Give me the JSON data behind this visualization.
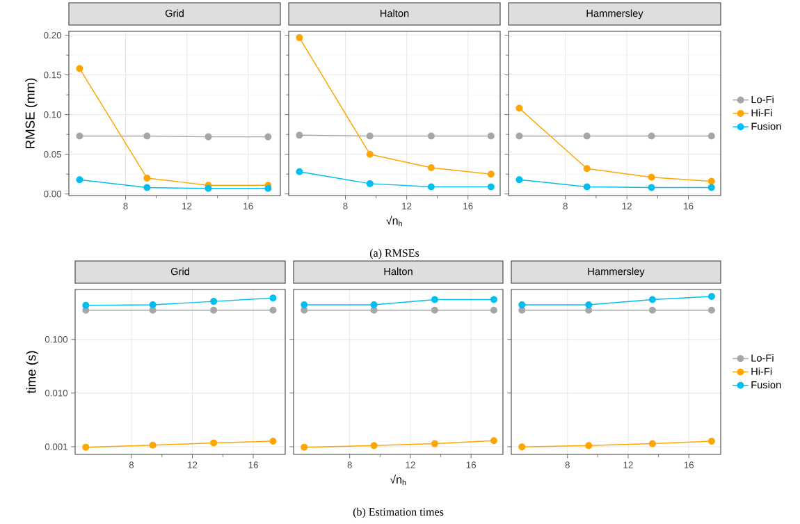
{
  "chart_data": [
    {
      "type": "line",
      "title": "Grid",
      "ylabel": "RMSE (mm)",
      "x": [
        5.0,
        9.4,
        13.4,
        17.3
      ],
      "xlim": [
        4.3,
        18.1
      ],
      "xticks": [
        8,
        12,
        16
      ],
      "ylim": [
        -0.002,
        0.205
      ],
      "yticks": [
        {
          "value": 0,
          "label": "0.00"
        },
        {
          "value": 0.05,
          "label": "0.05"
        },
        {
          "value": 0.1,
          "label": "0.10"
        },
        {
          "value": 0.15,
          "label": "0.15"
        },
        {
          "value": 0.2,
          "label": "0.20"
        }
      ],
      "grid": true,
      "marker": "circle",
      "line_style": "solid",
      "series": [
        {
          "color": "#a6a6a6",
          "values": [
            0.073,
            0.073,
            0.072,
            0.072
          ]
        },
        {
          "color": "#ffa500",
          "values": [
            0.158,
            0.02,
            0.011,
            0.011
          ]
        },
        {
          "color": "#00bfef",
          "values": [
            0.018,
            0.008,
            0.007,
            0.007
          ]
        }
      ]
    },
    {
      "type": "line",
      "title": "Halton",
      "xlabel": "√n$_{h}$",
      "annotations": [
        "(a) RMSEs"
      ],
      "x": [
        5.0,
        9.6,
        13.6,
        17.5
      ],
      "xlim": [
        4.3,
        18.1
      ],
      "xticks": [
        8,
        12,
        16
      ],
      "ylim": [
        -0.002,
        0.205
      ],
      "tick_labels": "x",
      "grid": true,
      "marker": "circle",
      "line_style": "solid",
      "series": [
        {
          "color": "#a6a6a6",
          "values": [
            0.074,
            0.073,
            0.073,
            0.073
          ]
        },
        {
          "color": "#ffa500",
          "values": [
            0.197,
            0.05,
            0.033,
            0.025
          ]
        },
        {
          "color": "#00bfef",
          "values": [
            0.028,
            0.013,
            0.009,
            0.009
          ]
        }
      ]
    },
    {
      "type": "line",
      "title": "Hammersley",
      "x": [
        5.0,
        9.4,
        13.6,
        17.5
      ],
      "xlim": [
        4.3,
        18.1
      ],
      "xticks": [
        8,
        12,
        16
      ],
      "ylim": [
        -0.002,
        0.205
      ],
      "tick_labels": "x",
      "grid": true,
      "legend": "right",
      "marker": "circle",
      "line_style": "solid",
      "series": [
        {
          "name": "Lo-Fi",
          "color": "#a6a6a6",
          "values": [
            0.073,
            0.073,
            0.073,
            0.073
          ]
        },
        {
          "name": "Hi-Fi",
          "color": "#ffa500",
          "values": [
            0.108,
            0.032,
            0.021,
            0.016
          ]
        },
        {
          "name": "Fusion",
          "color": "#00bfef",
          "values": [
            0.018,
            0.009,
            0.008,
            0.008
          ]
        }
      ]
    },
    {
      "type": "line",
      "title": "Grid",
      "ylabel": "time (s)",
      "x": [
        5.0,
        9.4,
        13.4,
        17.3
      ],
      "xlim": [
        4.3,
        18.1
      ],
      "xticks": [
        8,
        12,
        16
      ],
      "log": "y",
      "ylim": [
        0.00072,
        0.85
      ],
      "yticks": [
        {
          "value": 0.001,
          "label": "0.001"
        },
        {
          "value": 0.01,
          "label": "0.010"
        },
        {
          "value": 0.1,
          "label": "0.100"
        }
      ],
      "grid": true,
      "marker": "circle",
      "line_style": "solid",
      "series": [
        {
          "color": "#a6a6a6",
          "values": [
            0.35,
            0.35,
            0.35,
            0.35
          ]
        },
        {
          "color": "#ffa500",
          "values": [
            0.00098,
            0.00107,
            0.00118,
            0.00127
          ]
        },
        {
          "color": "#00bfef",
          "values": [
            0.43,
            0.44,
            0.51,
            0.59
          ]
        }
      ]
    },
    {
      "type": "line",
      "title": "Halton",
      "xlabel": "√n$_{h}$",
      "annotations": [
        "(b) Estimation times"
      ],
      "x": [
        5.0,
        9.6,
        13.6,
        17.5
      ],
      "xlim": [
        4.3,
        18.1
      ],
      "xticks": [
        8,
        12,
        16
      ],
      "log": "y",
      "ylim": [
        0.00072,
        0.85
      ],
      "tick_labels": "x",
      "grid": true,
      "marker": "circle",
      "line_style": "solid",
      "series": [
        {
          "color": "#a6a6a6",
          "values": [
            0.35,
            0.35,
            0.35,
            0.35
          ]
        },
        {
          "color": "#ffa500",
          "values": [
            0.00098,
            0.00105,
            0.00114,
            0.0013
          ]
        },
        {
          "color": "#00bfef",
          "values": [
            0.44,
            0.44,
            0.55,
            0.55
          ]
        }
      ]
    },
    {
      "type": "line",
      "title": "Hammersley",
      "x": [
        5.0,
        9.4,
        13.6,
        17.5
      ],
      "xlim": [
        4.3,
        18.1
      ],
      "xticks": [
        8,
        12,
        16
      ],
      "log": "y",
      "ylim": [
        0.00072,
        0.85
      ],
      "tick_labels": "x",
      "grid": true,
      "legend": "right",
      "marker": "circle",
      "line_style": "solid",
      "series": [
        {
          "name": "Lo-Fi",
          "color": "#a6a6a6",
          "values": [
            0.35,
            0.35,
            0.35,
            0.35
          ]
        },
        {
          "name": "Hi-Fi",
          "color": "#ffa500",
          "values": [
            0.00099,
            0.00105,
            0.00114,
            0.00127
          ]
        },
        {
          "name": "Fusion",
          "color": "#00bfef",
          "values": [
            0.44,
            0.44,
            0.55,
            0.63
          ]
        }
      ]
    }
  ]
}
